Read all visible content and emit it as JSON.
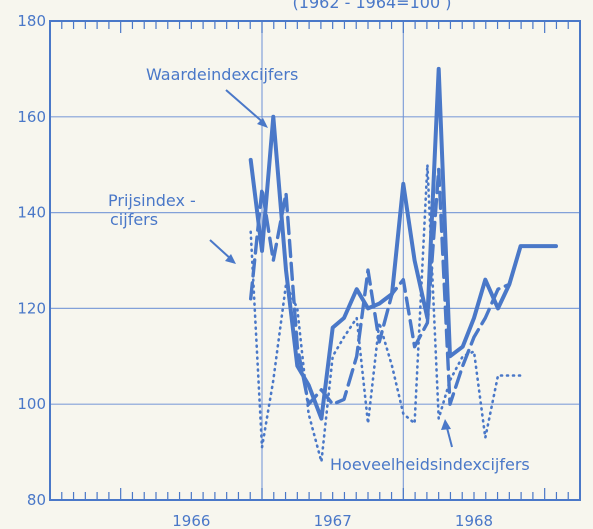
{
  "chart_data": {
    "type": "line",
    "subtitle": "(1962 - 1964=100 )",
    "ylim": [
      80,
      180
    ],
    "yticks": [
      80,
      100,
      120,
      140,
      160,
      180
    ],
    "years": [
      "1966",
      "1967",
      "1968"
    ],
    "grid": true,
    "series": [
      {
        "name": "Waardeindexcijfers",
        "color": "#4a78c8",
        "style": "solid",
        "x": [
          1966.92,
          1967.0,
          1967.08,
          1967.17,
          1967.25,
          1967.33,
          1967.42,
          1967.5,
          1967.58,
          1967.67,
          1967.75,
          1967.83,
          1967.92,
          1968.0,
          1968.08,
          1968.17,
          1968.25,
          1968.33,
          1968.42,
          1968.5,
          1968.58,
          1968.67,
          1968.75,
          1968.83,
          1968.92,
          1969.0,
          1969.08
        ],
        "values": [
          151,
          132,
          160,
          128,
          108,
          104,
          97,
          116,
          118,
          124,
          120,
          121,
          123,
          146,
          130,
          118,
          170,
          110,
          112,
          118,
          126,
          120,
          125,
          133,
          133,
          133,
          133
        ]
      },
      {
        "name": "Prijsindexcijfers",
        "color": "#4a78c8",
        "style": "dashed",
        "x": [
          1966.92,
          1967.0,
          1967.08,
          1967.17,
          1967.25,
          1967.33,
          1967.42,
          1967.5,
          1967.58,
          1967.67,
          1967.75,
          1967.83,
          1967.92,
          1968.0,
          1968.08,
          1968.17,
          1968.25,
          1968.33,
          1968.42,
          1968.5,
          1968.58,
          1968.67,
          1968.75
        ],
        "values": [
          122,
          145,
          130,
          144,
          112,
          100,
          103,
          100,
          101,
          110,
          128,
          113,
          123,
          126,
          112,
          117,
          149,
          100,
          108,
          114,
          118,
          124,
          125
        ]
      },
      {
        "name": "Hoeveelheidsindexcijfers",
        "color": "#4a78c8",
        "style": "dotted",
        "x": [
          1966.92,
          1967.0,
          1967.08,
          1967.17,
          1967.25,
          1967.33,
          1967.42,
          1967.5,
          1967.58,
          1967.67,
          1967.75,
          1967.83,
          1967.92,
          1968.0,
          1968.08,
          1968.17,
          1968.25,
          1968.33,
          1968.42,
          1968.5,
          1968.58,
          1968.67,
          1968.75,
          1968.83
        ],
        "values": [
          136,
          91,
          105,
          125,
          120,
          98,
          88,
          110,
          114,
          118,
          96,
          117,
          108,
          98,
          96,
          150,
          97,
          105,
          110,
          111,
          93,
          106,
          106,
          106
        ]
      }
    ]
  },
  "annotations": {
    "waarde": "Waardeindexcijfers",
    "prijs_line1": "Prijsindex -",
    "prijs_line2": "cijfers",
    "hoeveel": "Hoeveelheidsindexcijfers"
  }
}
